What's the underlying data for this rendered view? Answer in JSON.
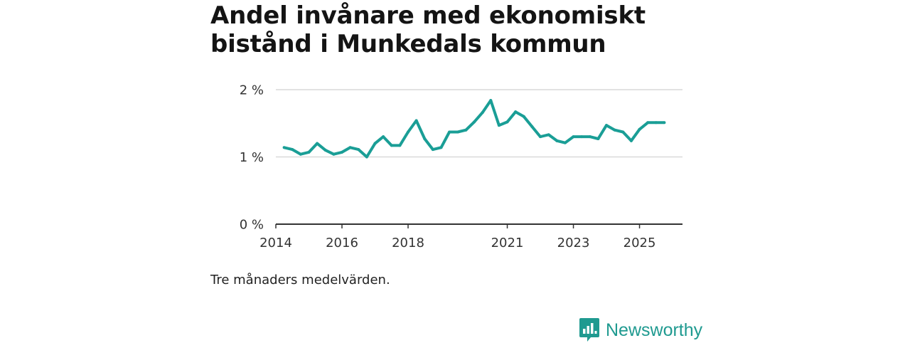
{
  "title": "Andel invånare med ekonomiskt bistånd i Munkedals kommun",
  "caption": "Tre månaders medelvärden.",
  "brand": {
    "name": "Newsworthy",
    "icon": "newsworthy-logo-icon"
  },
  "colors": {
    "line": "#1a9e96",
    "grid": "#d9d9d9",
    "axis": "#333333",
    "brand": "#1f9a90"
  },
  "chart_data": {
    "type": "line",
    "title": "Andel invånare med ekonomiskt bistånd i Munkedals kommun",
    "xlabel": "",
    "ylabel": "",
    "ylim": [
      0,
      2
    ],
    "xlim": [
      2014,
      2026.3
    ],
    "yticks": [
      {
        "value": 0,
        "label": "0 %"
      },
      {
        "value": 1,
        "label": "1 %"
      },
      {
        "value": 2,
        "label": "2 %"
      }
    ],
    "xticks": [
      {
        "value": 2014,
        "label": "2014"
      },
      {
        "value": 2016,
        "label": "2016"
      },
      {
        "value": 2018,
        "label": "2018"
      },
      {
        "value": 2021,
        "label": "2021"
      },
      {
        "value": 2023,
        "label": "2023"
      },
      {
        "value": 2025,
        "label": "2025"
      }
    ],
    "grid": true,
    "series": [
      {
        "name": "Andel invånare med ekonomiskt bistånd",
        "x": [
          2014.25,
          2014.5,
          2014.75,
          2015,
          2015.25,
          2015.5,
          2015.75,
          2016,
          2016.25,
          2016.5,
          2016.75,
          2017,
          2017.25,
          2017.5,
          2017.75,
          2018,
          2018.25,
          2018.5,
          2018.75,
          2019,
          2019.25,
          2019.5,
          2019.75,
          2020,
          2020.25,
          2020.5,
          2020.75,
          2021,
          2021.25,
          2021.5,
          2021.75,
          2022,
          2022.25,
          2022.5,
          2022.75,
          2023,
          2023.25,
          2023.5,
          2023.75,
          2024,
          2024.25,
          2024.5,
          2024.75,
          2025,
          2025.25,
          2025.5,
          2025.75
        ],
        "values": [
          1.14,
          1.11,
          1.04,
          1.07,
          1.2,
          1.1,
          1.04,
          1.07,
          1.14,
          1.11,
          1.0,
          1.2,
          1.3,
          1.17,
          1.17,
          1.37,
          1.54,
          1.27,
          1.11,
          1.14,
          1.37,
          1.37,
          1.4,
          1.52,
          1.66,
          1.84,
          1.47,
          1.52,
          1.67,
          1.6,
          1.45,
          1.3,
          1.33,
          1.24,
          1.21,
          1.3,
          1.3,
          1.3,
          1.27,
          1.47,
          1.4,
          1.37,
          1.24,
          1.41,
          1.51,
          1.51,
          1.51
        ]
      }
    ]
  }
}
